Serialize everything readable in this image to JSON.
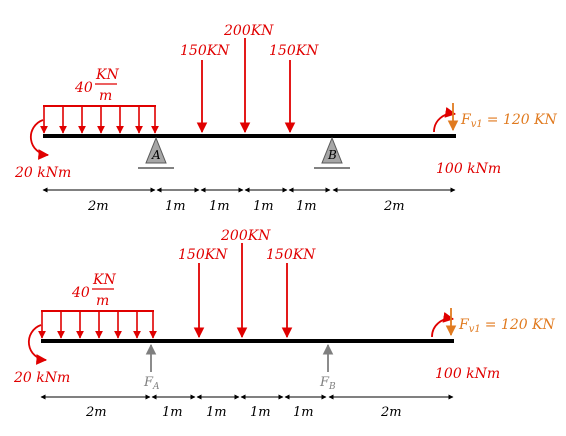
{
  "upper_diagram": {
    "udl": {
      "value": "40",
      "unit_num": "KN",
      "unit_den": "m"
    },
    "point_loads": [
      "150KN",
      "200KN",
      "150KN"
    ],
    "left_moment": "20 kNm",
    "right_moment": "100 kNm",
    "vertical_force": {
      "name": "F",
      "sub": "v1",
      "value": "= 120 KN"
    },
    "support_a": "A",
    "support_b": "B",
    "dims": [
      "2m",
      "1m",
      "1m",
      "1m",
      "1m",
      "2m"
    ]
  },
  "lower_diagram": {
    "udl": {
      "value": "40",
      "unit_num": "KN",
      "unit_den": "m"
    },
    "point_loads": [
      "150KN",
      "200KN",
      "150KN"
    ],
    "left_moment": "20 kNm",
    "right_moment": "100 kNm",
    "vertical_force": {
      "name": "F",
      "sub": "v1",
      "value": "= 120 KN"
    },
    "reaction_a": {
      "name": "F",
      "sub": "A"
    },
    "reaction_b": {
      "name": "F",
      "sub": "B"
    },
    "dims": [
      "2m",
      "1m",
      "1m",
      "1m",
      "1m",
      "2m"
    ]
  },
  "colors": {
    "load": "#e00000",
    "force": "#e07a1f",
    "reaction": "#7f7f7f",
    "beam": "#000000"
  }
}
